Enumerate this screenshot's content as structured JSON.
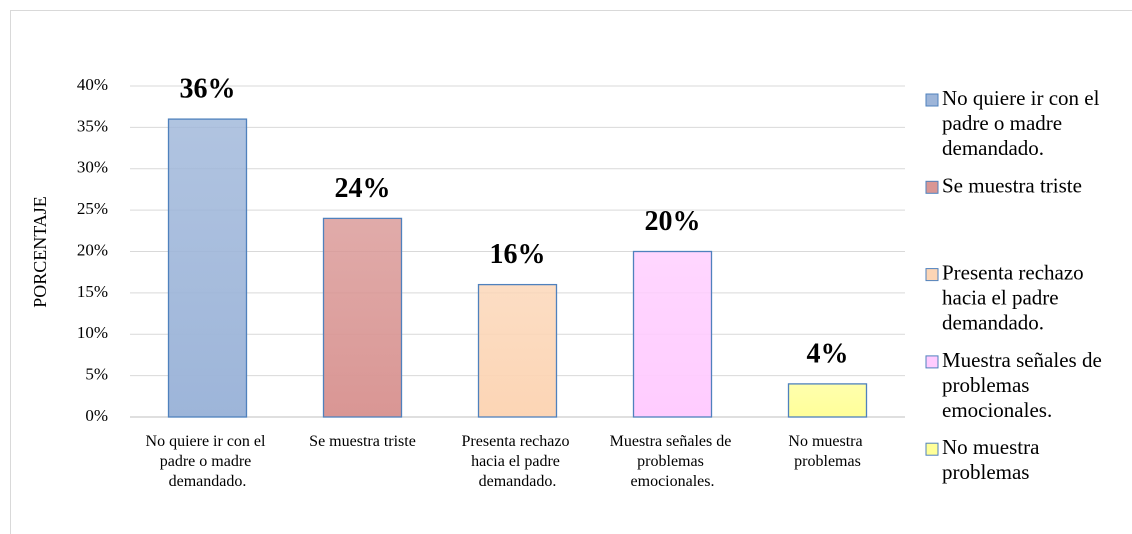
{
  "chart_data": {
    "type": "bar",
    "y_label": "PORCENTAJE",
    "categories": [
      "No quiere ir con el padre o madre demandado.",
      "Se muestra triste",
      "Presenta rechazo hacia el padre demandado.",
      "Muestra señales de problemas emocionales.",
      "No muestra problemas"
    ],
    "values": [
      36,
      24,
      16,
      20,
      4
    ],
    "value_labels": [
      "36%",
      "24%",
      "16%",
      "20%",
      "4%"
    ],
    "colors": [
      "#9db5d9",
      "#d99694",
      "#fcd5b5",
      "#ffccff",
      "#ffff99"
    ],
    "ylim": [
      0,
      40
    ],
    "yticks": [
      {
        "value": 0,
        "label": "0%"
      },
      {
        "value": 5,
        "label": "5%"
      },
      {
        "value": 10,
        "label": "10%"
      },
      {
        "value": 15,
        "label": "15%"
      },
      {
        "value": 20,
        "label": "20%"
      },
      {
        "value": 25,
        "label": "25%"
      },
      {
        "value": 30,
        "label": "30%"
      },
      {
        "value": 35,
        "label": "35%"
      },
      {
        "value": 40,
        "label": "40%"
      }
    ],
    "grid": true,
    "legend": "right"
  }
}
